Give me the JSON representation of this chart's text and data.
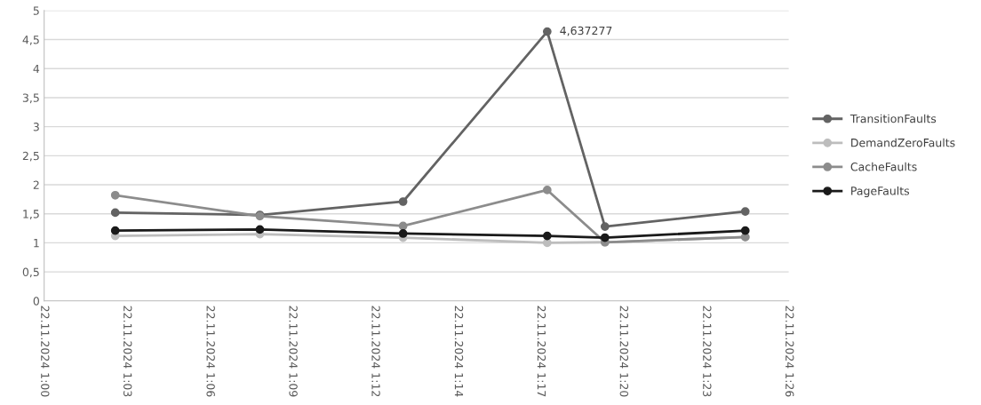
{
  "chart_data": {
    "type": "line",
    "x": [
      "2024-11-22T01:02:29",
      "2024-11-22T01:07:32",
      "2024-11-22T01:12:32",
      "2024-11-22T01:17:34",
      "2024-11-22T01:19:35",
      "2024-11-22T01:24:29"
    ],
    "series": [
      {
        "name": "TransitionFaults",
        "color": "#636363",
        "values": [
          1.52,
          1.48,
          1.71,
          4.637277,
          1.28,
          1.54
        ]
      },
      {
        "name": "DemandZeroFaults",
        "color": "#bdbdbd",
        "values": [
          1.12,
          1.15,
          1.09,
          1.0,
          1.01,
          1.1
        ]
      },
      {
        "name": "CacheFaults",
        "color": "#8c8c8c",
        "values": [
          1.82,
          1.46,
          1.29,
          1.91,
          1.01,
          1.1
        ]
      },
      {
        "name": "PageFaults",
        "color": "#1a1a1a",
        "values": [
          1.21,
          1.23,
          1.16,
          1.12,
          1.09,
          1.21
        ]
      }
    ],
    "annotations": [
      {
        "text": "4,637277",
        "x": "2024-11-22T01:17:34",
        "y": 4.637277
      }
    ],
    "xlim": [
      "2024-11-22T01:00:00",
      "2024-11-22T01:26:00"
    ],
    "xticks": [
      {
        "value": "2024-11-22T01:00:00",
        "label": "22.11.2024 1:00"
      },
      {
        "value": "2024-11-22T01:02:53",
        "label": "22.11.2024 1:03"
      },
      {
        "value": "2024-11-22T01:05:47",
        "label": "22.11.2024 1:06"
      },
      {
        "value": "2024-11-22T01:08:40",
        "label": "22.11.2024 1:09"
      },
      {
        "value": "2024-11-22T01:11:33",
        "label": "22.11.2024 1:12"
      },
      {
        "value": "2024-11-22T01:14:27",
        "label": "22.11.2024 1:14"
      },
      {
        "value": "2024-11-22T01:17:20",
        "label": "22.11.2024 1:17"
      },
      {
        "value": "2024-11-22T01:20:13",
        "label": "22.11.2024 1:20"
      },
      {
        "value": "2024-11-22T01:23:07",
        "label": "22.11.2024 1:23"
      },
      {
        "value": "2024-11-22T01:26:00",
        "label": "22.11.2024 1:26"
      }
    ],
    "ylim": [
      0,
      5
    ],
    "yticks": [
      0,
      {
        "value": 0.5,
        "label": "0,5"
      },
      1,
      {
        "value": 1.5,
        "label": "1,5"
      },
      2,
      {
        "value": 2.5,
        "label": "2,5"
      },
      3,
      {
        "value": 3.5,
        "label": "3,5"
      },
      4,
      {
        "value": 4.5,
        "label": "4,5"
      },
      5
    ],
    "grid": "y",
    "legend": "right",
    "marker": "circle",
    "line_style": "solid"
  }
}
